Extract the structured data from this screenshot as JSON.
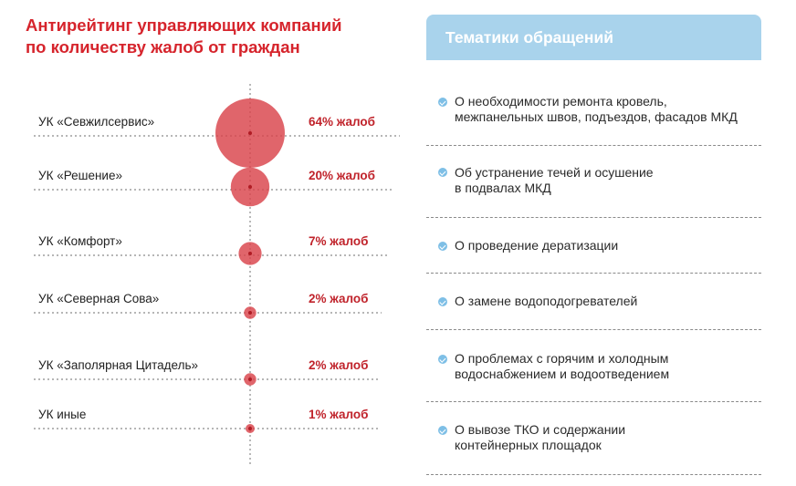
{
  "chart_data": {
    "type": "bubble",
    "title": [
      "Антирейтинг управляющих компаний",
      "по количеству жалоб от граждан"
    ],
    "categories": [
      "УК «Севжилсервис»",
      "УК «Решение»",
      "УК «Комфорт»",
      "УК «Северная Сова»",
      "УК «Заполярная Цитадель»",
      "УК иные"
    ],
    "values": [
      64,
      20,
      7,
      2,
      2,
      1
    ],
    "value_labels": [
      "64% жалоб",
      "20% жалоб",
      "7% жалоб",
      "2% жалоб",
      "2% жалоб",
      "1% жалоб"
    ],
    "unit": "%",
    "colors": {
      "bubble": "#d9434b",
      "bubble_dot": "#b01c24",
      "label_value": "#c0232b",
      "guides": "#8a8a8a"
    }
  },
  "panel": {
    "title": "Тематики обращений",
    "header_color": "#a9d3ec",
    "bullet_icon": "check-circle-icon",
    "items": [
      {
        "lines": [
          "О необходимости ремонта кровель,",
          "межпанельных швов, подъездов, фасадов МКД"
        ]
      },
      {
        "lines": [
          "Об устранение течей и осушение",
          "в подвалах МКД"
        ]
      },
      {
        "lines": [
          "О проведение дератизации"
        ]
      },
      {
        "lines": [
          "О замене водоподогревателей"
        ]
      },
      {
        "lines": [
          "О проблемах с горячим и холодным",
          "водоснабжением и водоотведением"
        ]
      },
      {
        "lines": [
          "О вывозе ТКО и содержании",
          "контейнерных площадок"
        ]
      }
    ]
  }
}
